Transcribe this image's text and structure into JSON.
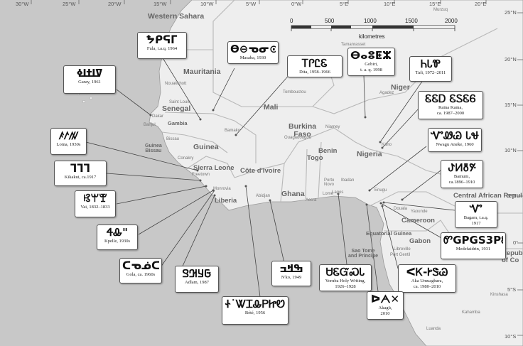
{
  "longitudes": [
    "30°W",
    "25°W",
    "20°W",
    "15°W",
    "10°W",
    "5°W",
    "0°W",
    "5°E",
    "10°E",
    "15°E",
    "20°E"
  ],
  "latitudes": [
    "25°N",
    "20°N",
    "15°N",
    "10°N",
    "5°N",
    "0°",
    "5°S",
    "10°S"
  ],
  "scale": {
    "ticks": [
      "0",
      "500",
      "1000",
      "1500",
      "2000"
    ],
    "unit": "kilometres"
  },
  "countries": {
    "western_sahara": "Western Sahara",
    "mauritania": "Mauritania",
    "senegal": "Senegal",
    "gambia": "Gambia",
    "mali": "Mali",
    "niger": "Niger",
    "burkina": "Burkina\nFaso",
    "guinea": "Guinea",
    "guinea_bissau": "Guinea\nBissau",
    "sierra_leone": "Sierra Leone",
    "liberia": "Liberia",
    "cote": "Côte d'Ivoire",
    "ghana": "Ghana",
    "togo": "Togo",
    "benin": "Benin",
    "nigeria": "Nigeria",
    "cameroon": "Cameroon",
    "car": "Central African Repul",
    "eq_guinea": "Equatorial Guinea",
    "gabon": "Gabon",
    "sao_tome": "Sao Tome\nand Principe",
    "rep_congo": "Republic\nof Co"
  },
  "cities": {
    "tamanrasset": "Tamanrasset",
    "murzuq": "Murzuq",
    "nouakchott": "Nouakchott",
    "saint_louis": "Saint Louis",
    "dakar": "Dakar",
    "banjul": "Banjul",
    "bissau": "Bissau",
    "conakry": "Conakry",
    "freetown": "Freetown",
    "monrovia": "Monrovia",
    "bamako": "Bamako",
    "tombouctou": "Tombouctou",
    "ouagadougou": "Ouagadougou",
    "niamey": "Niamey",
    "agadez": "Agadez",
    "kano": "Kano",
    "abidjan": "Abidjan",
    "accra": "Accra",
    "lome": "Lomé",
    "porto_novo": "Porto\nNovo",
    "lagos": "Lagos",
    "ibadan": "Ibadan",
    "enugu": "Enugu",
    "douala": "Douala",
    "yaounde": "Yaounde",
    "libreville": "Libreville",
    "port_gentil": "Port Gentil",
    "kinshasa": "Kinshasa",
    "kahamba": "Kahamba",
    "luanda": "Luanda"
  },
  "scripts": [
    {
      "id": "fula",
      "glyphs": "ᖬᑭᕋᒥ",
      "name": "Fula, t.a.q. 1964"
    },
    {
      "id": "masaba",
      "glyphs": "ϴ⊖ᓀᓂ⊙",
      "name": "Masaba, 1930"
    },
    {
      "id": "dita",
      "glyphs": "ᎢᎵᏝᏋ",
      "name": "Dita, 1958–1966"
    },
    {
      "id": "gobiri",
      "glyphs": "ⴱⴰⵓⵟⵣⵜ",
      "name": "Gobiri,",
      "sub": "t. a. q. 1998"
    },
    {
      "id": "tafi",
      "glyphs": "ᏂᏓᏈ",
      "name": "Tafi, 1972–2011"
    },
    {
      "id": "garay",
      "glyphs": "ߜߊߙߊߦ",
      "name": "Garay, 1961"
    },
    {
      "id": "raina",
      "glyphs": "ᏋᏋᎠ ᏋᏚᏋᏮ",
      "name": "Raina Kama,",
      "sub": "ca. 1987–2000"
    },
    {
      "id": "nwagu",
      "glyphs": "ᏉᏪᏊ ᏓᏠ",
      "name": "Nwagu Aneke, 1960"
    },
    {
      "id": "loma",
      "glyphs": "ꤰꤱꤲ",
      "name": "Loma, 1930s"
    },
    {
      "id": "bamum",
      "glyphs": "ꚠꚡꚢꚣ",
      "name": "Bamum,",
      "sub": "ca.1896–1910"
    },
    {
      "id": "kikakui",
      "glyphs": "ᒣᒣᒣ",
      "name": "Kikakui, ca.1917"
    },
    {
      "id": "vai",
      "glyphs": "ꕙꕚꕛ",
      "name": "Vai, 1832–1833"
    },
    {
      "id": "bagam",
      "glyphs": "Ꮙ",
      "name": "Bagam, t.a.q.",
      "sub": "1917"
    },
    {
      "id": "kpelle",
      "glyphs": "ᏎᎲ\"",
      "name": "Kpelle, 1930s"
    },
    {
      "id": "medefaidrin",
      "glyphs": "ᏛGPGS3PᏋSᏅ",
      "name": "Medefaidrin, 1931"
    },
    {
      "id": "gola",
      "glyphs": "ᑕᓀᓅᑕ",
      "name": "Gola, ca. 1960s"
    },
    {
      "id": "adlam",
      "glyphs": "𞤀𞤁𞤂𞤃",
      "name": "Adlam, 1987"
    },
    {
      "id": "nko",
      "glyphs": "ߒߞߏ",
      "name": "N'ko, 1949"
    },
    {
      "id": "yoruba",
      "glyphs": "ᏌᏋᏳᏍᏓ",
      "name": "Yoruba Holy Writing,",
      "sub": "1926–1928"
    },
    {
      "id": "aka",
      "glyphs": "ᐸᏦ-ᎨᏕᏊ",
      "name": "Aka Umuagbara,",
      "sub": "ca. 1980–2010"
    },
    {
      "id": "akagu",
      "glyphs": "ᐅᗅ✕",
      "name": "Akagü,",
      "sub": "2010"
    },
    {
      "id": "bete",
      "glyphs": "Ꮠ˙ᏔᏆᎲᏢᏥᏬ",
      "name": "Bété, 1956"
    }
  ]
}
